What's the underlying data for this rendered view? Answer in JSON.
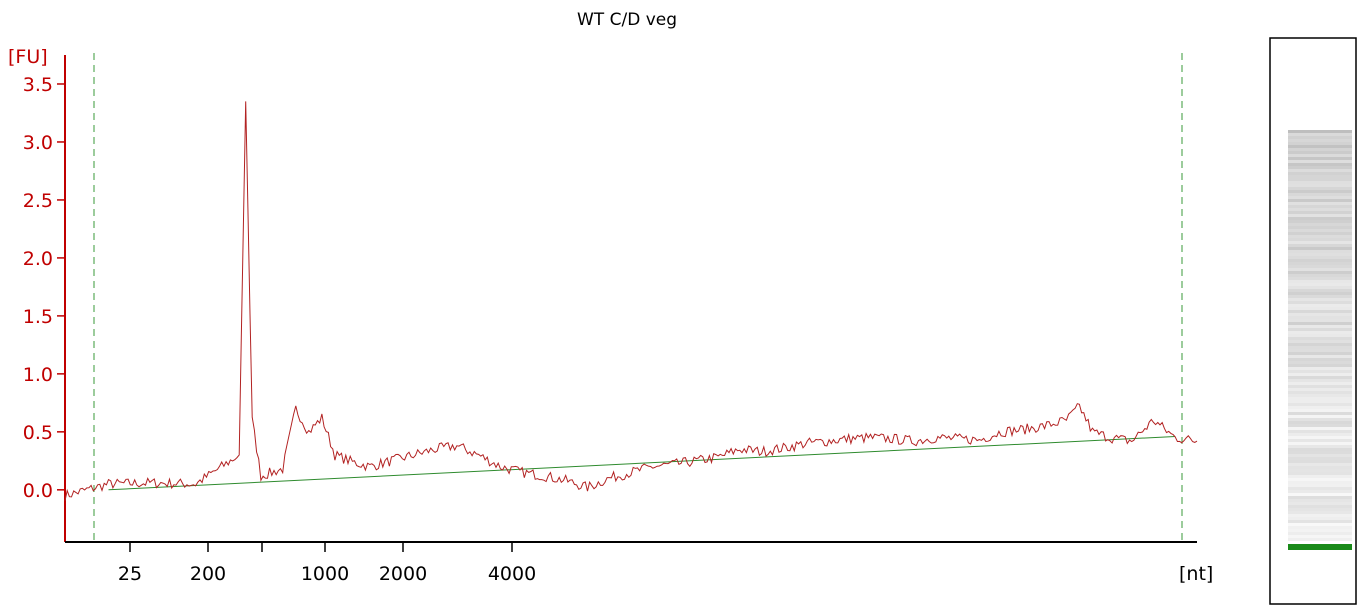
{
  "chart_data": {
    "type": "line",
    "title": "WT C/D veg",
    "y_unit": "[FU]",
    "x_unit": "[nt]",
    "ylim": [
      -0.45,
      3.75
    ],
    "y_ticks": [
      0.0,
      0.5,
      1.0,
      1.5,
      2.0,
      2.5,
      3.0,
      3.5
    ],
    "y_tick_labels": [
      "0.0",
      "0.5",
      "1.0",
      "1.5",
      "2.0",
      "2.5",
      "3.0",
      "3.5"
    ],
    "x_tick_labels": [
      "25",
      "200",
      "",
      "1000",
      "2000",
      "4000"
    ],
    "grid": false,
    "colors": {
      "axis": "#c00000",
      "trace": "#b22222",
      "baseline": "#2e8b2e",
      "marker_line": "#3a9a3a",
      "gel_band": "#1a8a1a"
    },
    "series": [
      {
        "values": [
          [
            0.0,
            -0.05
          ],
          [
            1.0,
            0.05
          ],
          [
            2.0,
            0.06
          ],
          [
            3.0,
            0.05
          ],
          [
            4.0,
            0.3
          ],
          [
            4.15,
            3.35
          ],
          [
            4.3,
            0.6
          ],
          [
            4.5,
            0.12
          ],
          [
            5.0,
            0.18
          ],
          [
            5.3,
            0.7
          ],
          [
            5.6,
            0.5
          ],
          [
            5.9,
            0.62
          ],
          [
            6.2,
            0.3
          ],
          [
            6.6,
            0.24
          ],
          [
            7.0,
            0.2
          ],
          [
            7.5,
            0.25
          ],
          [
            8.0,
            0.3
          ],
          [
            8.5,
            0.35
          ],
          [
            9.0,
            0.38
          ],
          [
            9.5,
            0.3
          ],
          [
            10.0,
            0.2
          ],
          [
            10.5,
            0.15
          ],
          [
            11.0,
            0.12
          ],
          [
            11.5,
            0.08
          ],
          [
            12.0,
            0.02
          ],
          [
            12.5,
            0.1
          ],
          [
            13.0,
            0.15
          ],
          [
            13.5,
            0.2
          ],
          [
            14.0,
            0.22
          ],
          [
            14.5,
            0.25
          ],
          [
            15.0,
            0.28
          ],
          [
            15.5,
            0.35
          ],
          [
            16.0,
            0.33
          ],
          [
            16.5,
            0.36
          ],
          [
            17.0,
            0.4
          ],
          [
            17.5,
            0.42
          ],
          [
            18.0,
            0.44
          ],
          [
            18.5,
            0.45
          ],
          [
            19.0,
            0.44
          ],
          [
            19.5,
            0.42
          ],
          [
            20.0,
            0.45
          ],
          [
            20.5,
            0.44
          ],
          [
            21.0,
            0.43
          ],
          [
            21.5,
            0.5
          ],
          [
            22.0,
            0.52
          ],
          [
            22.5,
            0.55
          ],
          [
            23.0,
            0.6
          ],
          [
            23.3,
            0.72
          ],
          [
            23.6,
            0.5
          ],
          [
            24.0,
            0.45
          ],
          [
            24.5,
            0.42
          ],
          [
            25.0,
            0.6
          ],
          [
            25.5,
            0.45
          ],
          [
            26.0,
            0.42
          ]
        ]
      }
    ],
    "baseline": [
      [
        1.0,
        0.0
      ],
      [
        25.5,
        0.46
      ]
    ]
  },
  "gel_lane": {
    "marker_color": "#1a8a1a"
  }
}
